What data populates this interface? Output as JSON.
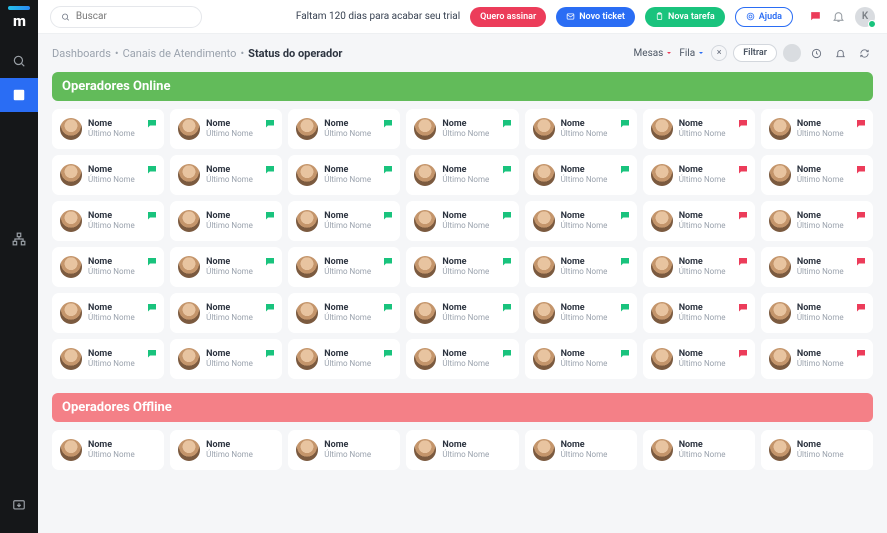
{
  "search": {
    "placeholder": "Buscar"
  },
  "trial_text": "Faltam 120 dias para acabar seu trial",
  "buttons": {
    "subscribe": "Quero assinar",
    "new_ticket": "Novo ticket",
    "new_task": "Nova tarefa",
    "help": "Ajuda"
  },
  "user_initial": "K",
  "breadcrumb": {
    "l1": "Dashboards",
    "l2": "Canais de Atendimento",
    "current": "Status do operador"
  },
  "filters": {
    "mesas": "Mesas",
    "fila": "Fila",
    "filtrar": "Filtrar"
  },
  "sections": {
    "online": "Operadores Online",
    "offline": "Operadores Offline"
  },
  "card": {
    "name": "Nome",
    "sub": "Último Nome"
  },
  "colors": {
    "green": "#19c37d",
    "red": "#ec3c5a",
    "section_green": "#62bb5a",
    "section_red": "#f48087",
    "blue": "#2a6df4"
  },
  "online_bubbles": [
    [
      "green",
      "green",
      "green",
      "green",
      "green",
      "green",
      "red",
      "red"
    ],
    [
      "green",
      "green",
      "green",
      "green",
      "green",
      "green",
      "red",
      "red"
    ],
    [
      "green",
      "green",
      "green",
      "green",
      "green",
      "green",
      "red",
      "red"
    ],
    [
      "green",
      "green",
      "green",
      "green",
      "green",
      "green",
      "red",
      "red"
    ],
    [
      "green",
      "green",
      "green",
      "green",
      "green",
      "green",
      "red",
      "red"
    ],
    [
      "green",
      "green",
      "green",
      "green",
      "green",
      "green",
      "red",
      "red"
    ]
  ],
  "offline_count": 7
}
